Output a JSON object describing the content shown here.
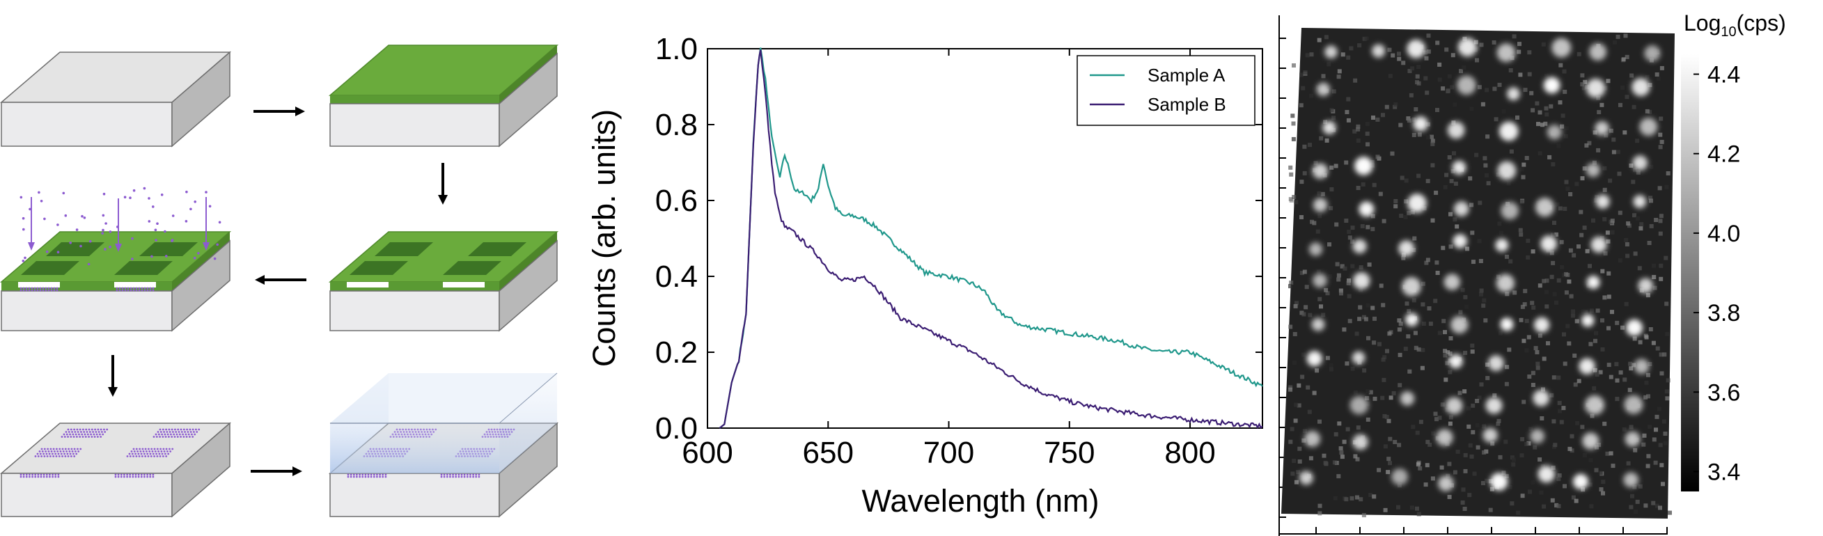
{
  "colors": {
    "green": "#6aab3c",
    "green_dark": "#4f8a2b",
    "block_top": "#e3e3e3",
    "block_front": "#e9e9eb",
    "block_side": "#b9b9b9",
    "dots": "#8c5bd0",
    "overlay": "#a9c2e8",
    "sample_a": "#1f978b",
    "sample_b": "#3a1c72"
  },
  "chart_data": [
    {
      "type": "line",
      "xlabel": "Wavelength (nm)",
      "ylabel": "Counts (arb. units)",
      "xlim": [
        600,
        830
      ],
      "ylim": [
        0,
        1.0
      ],
      "xticks": [
        "600",
        "650",
        "700",
        "750",
        "800"
      ],
      "yticks": [
        "0.0",
        "0.2",
        "0.4",
        "0.6",
        "0.8",
        "1.0"
      ],
      "grid": false,
      "legend_position": "top-right",
      "series": [
        {
          "name": "Sample A",
          "color": "#1f978b",
          "x": [
            605,
            607,
            610,
            613,
            616,
            619,
            621,
            622,
            624,
            626,
            628,
            630,
            632,
            634,
            636,
            638,
            640,
            643,
            646,
            648,
            650,
            653,
            656,
            660,
            665,
            670,
            675,
            680,
            685,
            690,
            700,
            710,
            715,
            720,
            730,
            740,
            750,
            760,
            770,
            780,
            790,
            800,
            810,
            820,
            830
          ],
          "y": [
            0.0,
            0.01,
            0.12,
            0.18,
            0.3,
            0.75,
            0.96,
            1.0,
            0.92,
            0.8,
            0.72,
            0.66,
            0.72,
            0.68,
            0.63,
            0.62,
            0.62,
            0.6,
            0.63,
            0.7,
            0.64,
            0.58,
            0.56,
            0.56,
            0.55,
            0.53,
            0.5,
            0.47,
            0.44,
            0.41,
            0.4,
            0.38,
            0.36,
            0.31,
            0.27,
            0.26,
            0.25,
            0.24,
            0.23,
            0.21,
            0.2,
            0.2,
            0.17,
            0.14,
            0.11
          ]
        },
        {
          "name": "Sample B",
          "color": "#3a1c72",
          "x": [
            605,
            607,
            610,
            613,
            616,
            619,
            621,
            622,
            624,
            626,
            628,
            630,
            632,
            635,
            640,
            645,
            650,
            655,
            660,
            665,
            670,
            675,
            680,
            690,
            700,
            710,
            720,
            730,
            740,
            750,
            760,
            770,
            780,
            790,
            800,
            810,
            820,
            830
          ],
          "y": [
            0.0,
            0.01,
            0.12,
            0.18,
            0.3,
            0.75,
            0.96,
            1.0,
            0.88,
            0.74,
            0.62,
            0.56,
            0.53,
            0.52,
            0.49,
            0.46,
            0.42,
            0.39,
            0.39,
            0.4,
            0.37,
            0.33,
            0.29,
            0.26,
            0.23,
            0.2,
            0.16,
            0.12,
            0.09,
            0.07,
            0.055,
            0.045,
            0.035,
            0.028,
            0.022,
            0.016,
            0.01,
            0.005
          ]
        }
      ]
    },
    {
      "type": "heatmap",
      "colorbar_label": "Log₁₀(cps)",
      "colorbar_label_base": "Log",
      "colorbar_label_sub": "10",
      "colorbar_label_unit": "(cps)",
      "colorbar_range": [
        3.35,
        4.45
      ],
      "colorbar_ticks": [
        "4.4",
        "4.2",
        "4.0",
        "3.8",
        "3.6",
        "3.4"
      ],
      "colormap": "gray",
      "description_rows": 12,
      "description_cols": 8
    }
  ]
}
